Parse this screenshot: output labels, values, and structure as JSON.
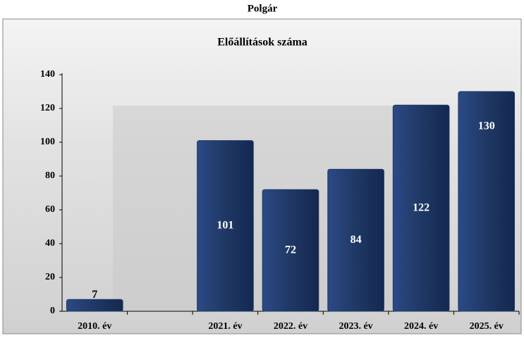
{
  "page_title": "Polgár",
  "chart_data": {
    "type": "bar",
    "title": "Előállítások száma",
    "categories": [
      "2010. év",
      null,
      "2021. év",
      "2022. év",
      "2023. év",
      "2024. év",
      "2025. év"
    ],
    "values": [
      7,
      null,
      101,
      72,
      84,
      122,
      130
    ],
    "color": "#1f3864",
    "ylim": [
      0,
      140
    ],
    "yticks": [
      0,
      20,
      40,
      60,
      80,
      100,
      120,
      140
    ],
    "grid": false
  }
}
